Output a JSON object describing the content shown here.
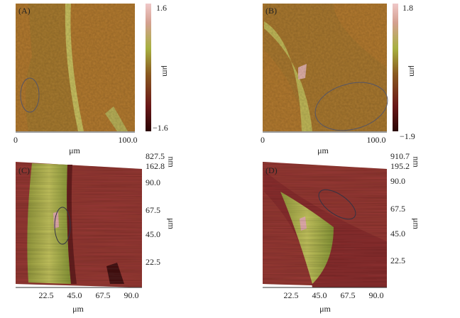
{
  "panels": [
    {
      "label": "(A)",
      "colorbar": {
        "max": "1.6",
        "min": "−1.6",
        "unit": "μm"
      },
      "x_axis": {
        "start": "0",
        "end": "100.0",
        "unit": "μm"
      }
    },
    {
      "label": "(B)",
      "colorbar": {
        "max": "1.8",
        "min": "−1.9",
        "unit": "μm"
      },
      "x_axis": {
        "start": "0",
        "end": "100.0",
        "unit": "μm"
      }
    },
    {
      "label": "(C)",
      "z_axis": {
        "max": "827.5",
        "min": "162.8",
        "unit": "nm"
      },
      "y_axis": {
        "ticks": [
          "90.0",
          "67.5",
          "45.0",
          "22.5"
        ],
        "unit": "μm"
      },
      "x_axis": {
        "ticks": [
          "22.5",
          "45.0",
          "67.5",
          "90.0"
        ],
        "unit": "μm"
      }
    },
    {
      "label": "(D)",
      "z_axis": {
        "max": "910.7",
        "min": "195.2",
        "unit": "nm"
      },
      "y_axis": {
        "ticks": [
          "90.0",
          "67.5",
          "45.0",
          "22.5"
        ],
        "unit": "μm"
      },
      "x_axis": {
        "ticks": [
          "22.5",
          "45.0",
          "67.5",
          "90.0"
        ],
        "unit": "μm"
      }
    }
  ]
}
